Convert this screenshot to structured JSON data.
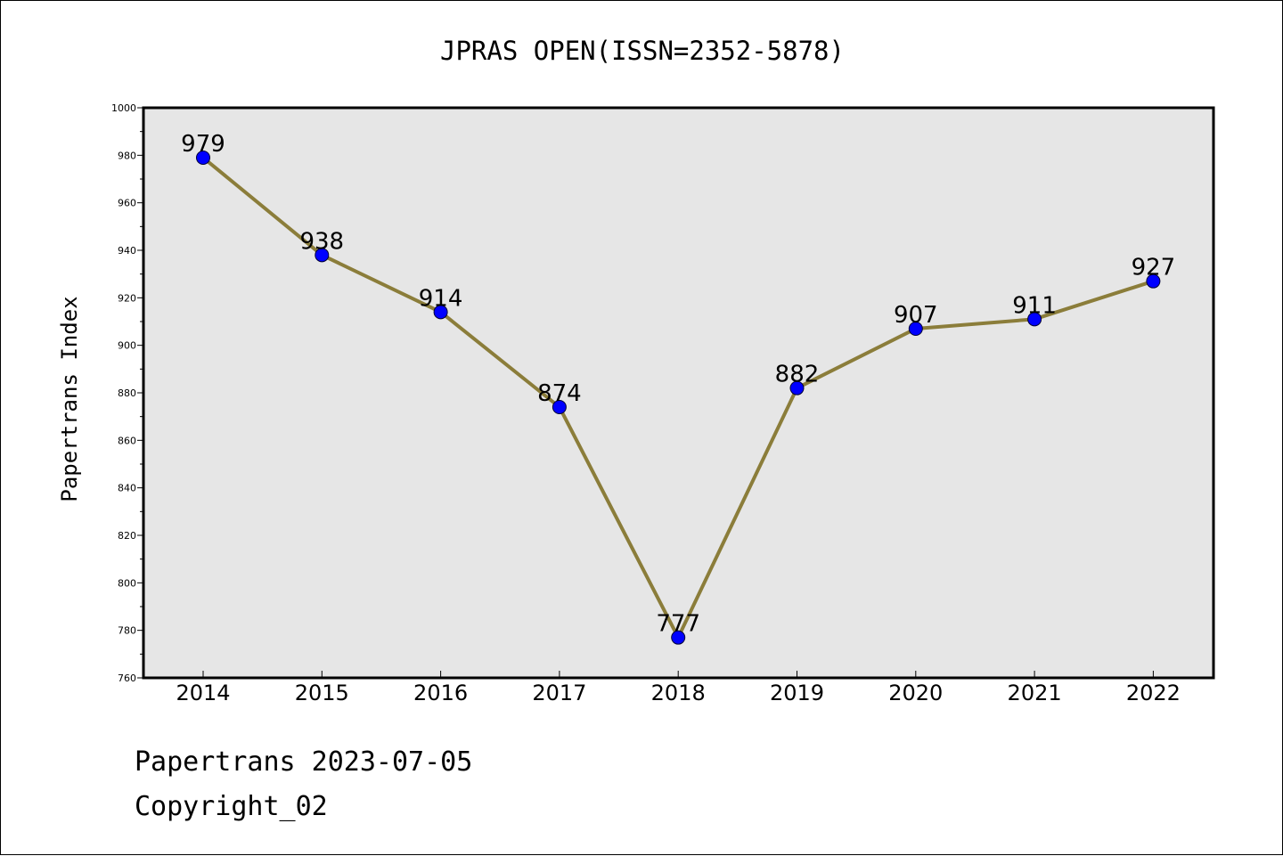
{
  "chart_data": {
    "type": "line",
    "title": "JPRAS OPEN(ISSN=2352-5878)",
    "ylabel": "Papertrans Index",
    "xlabel": "",
    "categories": [
      "2014",
      "2015",
      "2016",
      "2017",
      "2018",
      "2019",
      "2020",
      "2021",
      "2022"
    ],
    "values": [
      979,
      938,
      914,
      874,
      777,
      882,
      907,
      911,
      927
    ],
    "data_labels": [
      "979",
      "938",
      "914",
      "874",
      "777",
      "882",
      "907",
      "911",
      "927"
    ],
    "ylim": [
      760,
      1000
    ],
    "yticks": [
      "760",
      "780",
      "800",
      "820",
      "840",
      "860",
      "880",
      "900",
      "920",
      "940",
      "960",
      "980",
      "1000"
    ],
    "grid": false,
    "legend": "none",
    "colors": {
      "line": "#8b7d3a",
      "marker": "#0000ff",
      "plot_background": "#e6e6e6"
    }
  },
  "footer": {
    "line1": "Papertrans 2023-07-05",
    "line2": "Copyright_02"
  }
}
